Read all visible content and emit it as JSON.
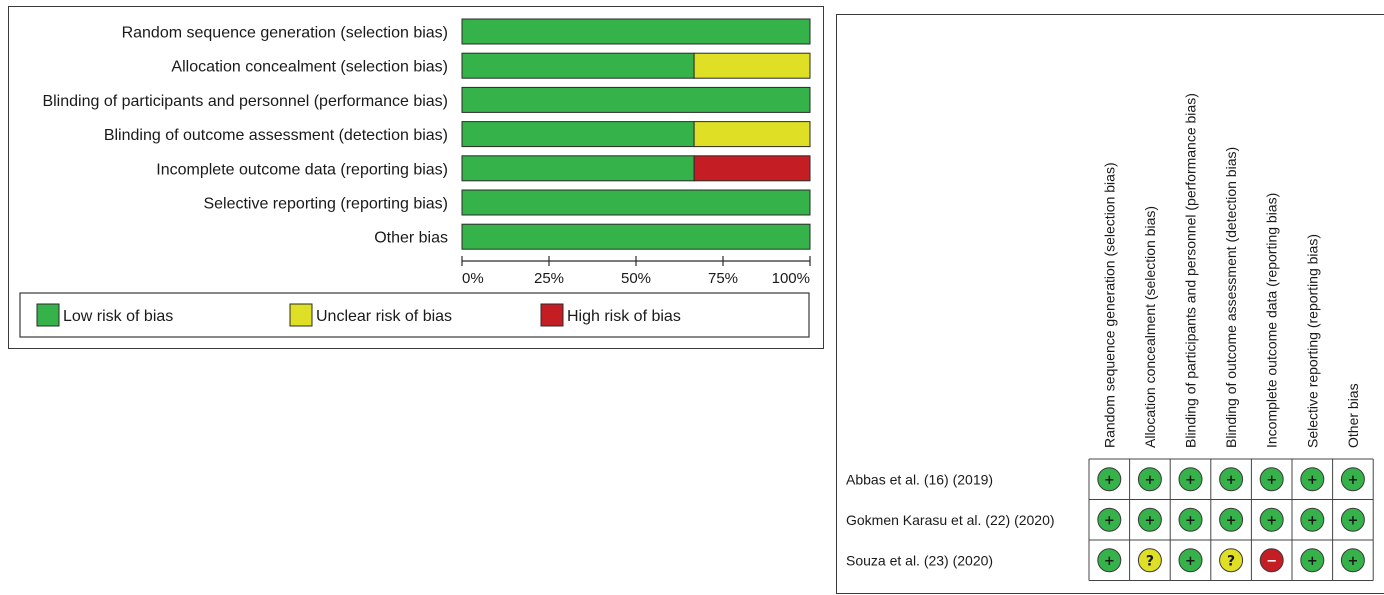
{
  "chart_data": [
    {
      "type": "bar",
      "orientation": "horizontal",
      "stacked": true,
      "categories": [
        "Random sequence generation (selection bias)",
        "Allocation concealment (selection bias)",
        "Blinding of participants and personnel (performance bias)",
        "Blinding of outcome assessment (detection bias)",
        "Incomplete outcome data (reporting bias)",
        "Selective reporting (reporting bias)",
        "Other bias"
      ],
      "series": [
        {
          "name": "Low risk of bias",
          "color": "#36b24a",
          "values": [
            100,
            66.7,
            100,
            66.7,
            66.7,
            100,
            100
          ]
        },
        {
          "name": "Unclear risk of bias",
          "color": "#dfdf26",
          "values": [
            0,
            33.3,
            0,
            33.3,
            0,
            0,
            0
          ]
        },
        {
          "name": "High risk of bias",
          "color": "#c41e24",
          "values": [
            0,
            0,
            0,
            0,
            33.3,
            0,
            0
          ]
        }
      ],
      "xlim": [
        0,
        100
      ],
      "xticks": [
        "0%",
        "25%",
        "50%",
        "75%",
        "100%"
      ],
      "legend_placement": "bottom"
    },
    {
      "type": "table",
      "columns": [
        "Random sequence generation (selection bias)",
        "Allocation concealment (selection bias)",
        "Blinding of participants and personnel (performance bias)",
        "Blinding of outcome assessment (detection bias)",
        "Incomplete outcome data (reporting bias)",
        "Selective reporting (reporting bias)",
        "Other bias"
      ],
      "rows": [
        {
          "study": "Abbas et al. (16) (2019)",
          "judgements": [
            "low",
            "low",
            "low",
            "low",
            "low",
            "low",
            "low"
          ]
        },
        {
          "study": "Gokmen Karasu et al. (22) (2020)",
          "judgements": [
            "low",
            "low",
            "low",
            "low",
            "low",
            "low",
            "low"
          ]
        },
        {
          "study": "Souza et al. (23) (2020)",
          "judgements": [
            "low",
            "unclear",
            "low",
            "unclear",
            "high",
            "low",
            "low"
          ]
        }
      ],
      "symbols": {
        "low": "+",
        "unclear": "?",
        "high": "−"
      },
      "colors": {
        "low": "#36b24a",
        "unclear": "#dfdf26",
        "high": "#c41e24"
      }
    }
  ]
}
